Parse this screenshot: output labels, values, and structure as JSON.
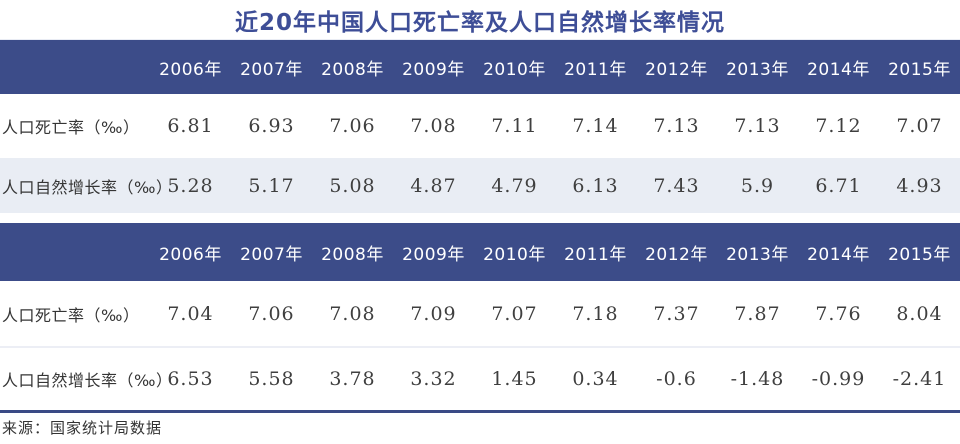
{
  "title": "近20年中国人口死亡率及人口自然增长率情况",
  "source": "来源：国家统计局数据",
  "colors": {
    "title_text": "#3e4e97",
    "header_background": "#3c4c89",
    "stripe_background": "#e9edf4",
    "value_text": "#3f3f3f",
    "bottom_rule": "#3a4a85"
  },
  "tables": [
    {
      "years": [
        "2006年",
        "2007年",
        "2008年",
        "2009年",
        "2010年",
        "2011年",
        "2012年",
        "2013年",
        "2014年",
        "2015年"
      ],
      "rows": [
        {
          "label": "人口死亡率（‰）",
          "values": [
            "6.81",
            "6.93",
            "7.06",
            "7.08",
            "7.11",
            "7.14",
            "7.13",
            "7.13",
            "7.12",
            "7.07"
          ]
        },
        {
          "label": "人口自然增长率（‰）",
          "values": [
            "5.28",
            "5.17",
            "5.08",
            "4.87",
            "4.79",
            "6.13",
            "7.43",
            "5.9",
            "6.71",
            "4.93"
          ]
        }
      ]
    },
    {
      "years": [
        "2006年",
        "2007年",
        "2008年",
        "2009年",
        "2010年",
        "2011年",
        "2012年",
        "2013年",
        "2014年",
        "2015年"
      ],
      "rows": [
        {
          "label": "人口死亡率（‰）",
          "values": [
            "7.04",
            "7.06",
            "7.08",
            "7.09",
            "7.07",
            "7.18",
            "7.37",
            "7.87",
            "7.76",
            "8.04"
          ]
        },
        {
          "label": "人口自然增长率（‰）",
          "values": [
            "6.53",
            "5.58",
            "3.78",
            "3.32",
            "1.45",
            "0.34",
            "-0.6",
            "-1.48",
            "-0.99",
            "-2.41"
          ]
        }
      ]
    }
  ],
  "chart_data": [
    {
      "type": "table",
      "title": "近20年中国人口死亡率及人口自然增长率情况",
      "categories": [
        "2006年",
        "2007年",
        "2008年",
        "2009年",
        "2010年",
        "2011年",
        "2012年",
        "2013年",
        "2014年",
        "2015年"
      ],
      "series": [
        {
          "name": "人口死亡率（‰）",
          "values": [
            6.81,
            6.93,
            7.06,
            7.08,
            7.11,
            7.14,
            7.13,
            7.13,
            7.12,
            7.07
          ]
        },
        {
          "name": "人口自然增长率（‰）",
          "values": [
            5.28,
            5.17,
            5.08,
            4.87,
            4.79,
            6.13,
            7.43,
            5.9,
            6.71,
            4.93
          ]
        }
      ]
    },
    {
      "type": "table",
      "title": "近20年中国人口死亡率及人口自然增长率情况",
      "categories": [
        "2006年",
        "2007年",
        "2008年",
        "2009年",
        "2010年",
        "2011年",
        "2012年",
        "2013年",
        "2014年",
        "2015年"
      ],
      "series": [
        {
          "name": "人口死亡率（‰）",
          "values": [
            7.04,
            7.06,
            7.08,
            7.09,
            7.07,
            7.18,
            7.37,
            7.87,
            7.76,
            8.04
          ]
        },
        {
          "name": "人口自然增长率（‰）",
          "values": [
            6.53,
            5.58,
            3.78,
            3.32,
            1.45,
            0.34,
            -0.6,
            -1.48,
            -0.99,
            -2.41
          ]
        }
      ]
    }
  ]
}
